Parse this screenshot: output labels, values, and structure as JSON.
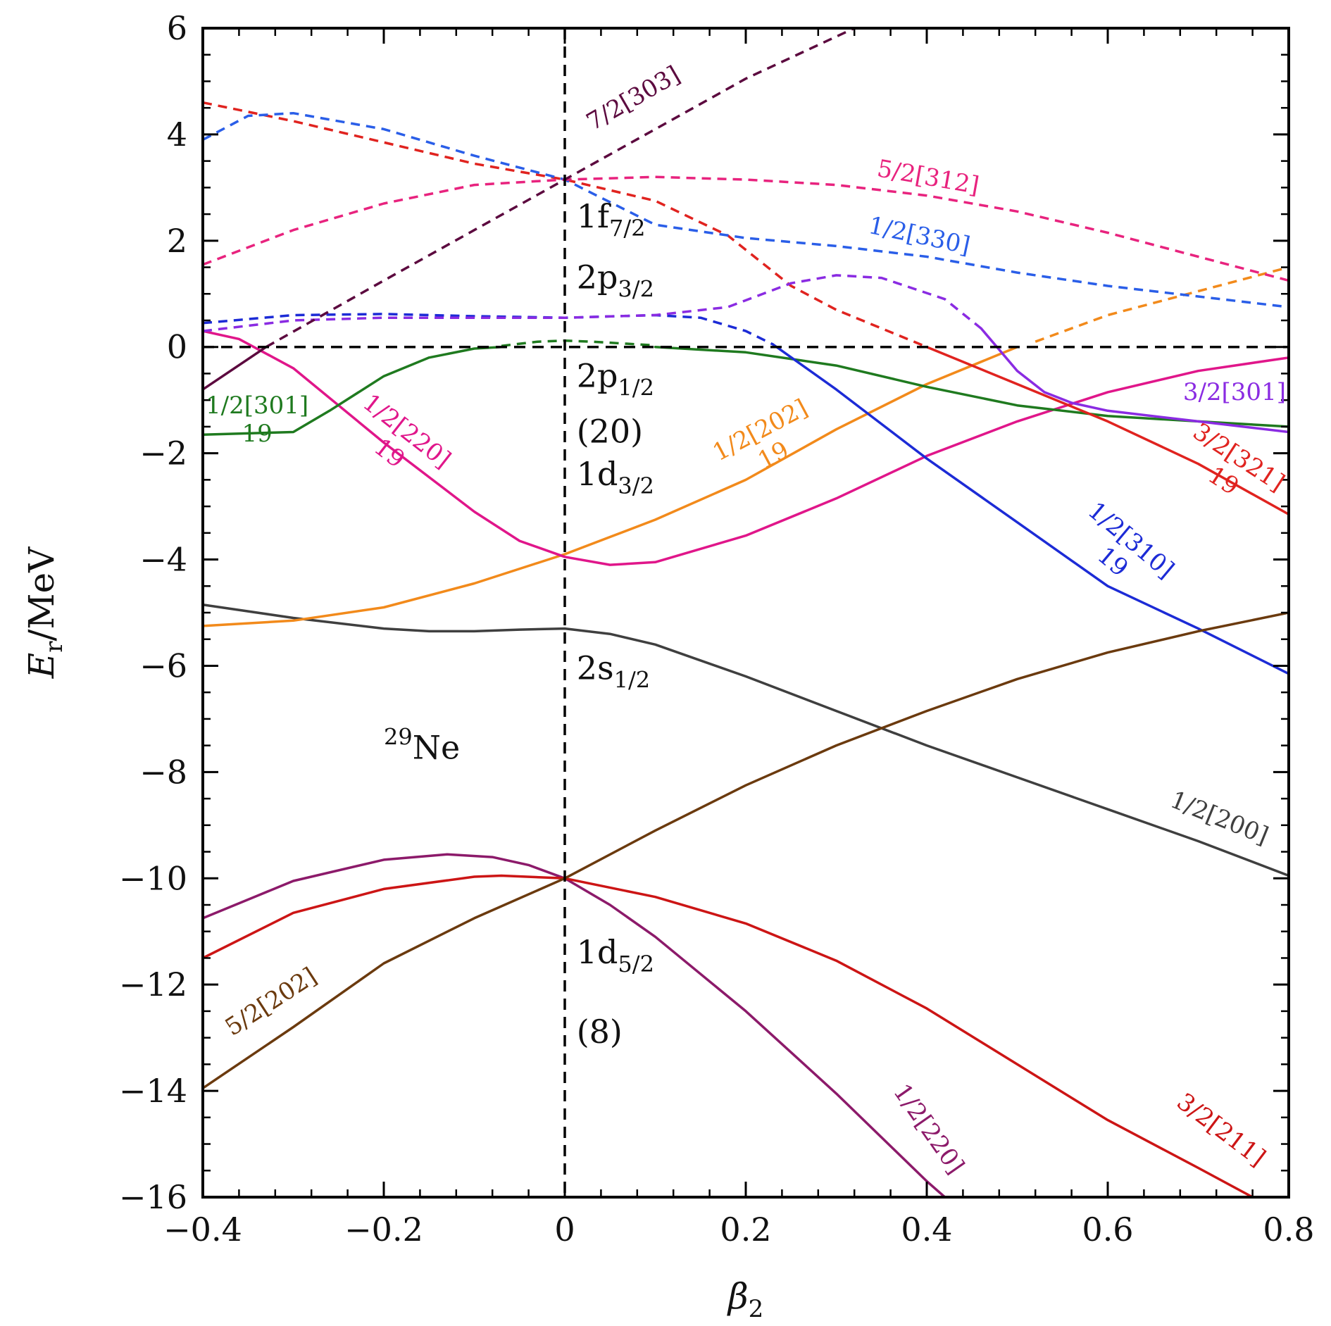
{
  "chart_data": {
    "type": "line",
    "xlabel": "β2",
    "ylabel": "Er/MeV",
    "xlim": [
      -0.4,
      0.8
    ],
    "ylim": [
      -16,
      6
    ],
    "x_ticks": [
      "−0.4",
      "−0.2",
      "0",
      "0.2",
      "0.4",
      "0.6",
      "0.8"
    ],
    "y_ticks": [
      "−16",
      "−14",
      "−12",
      "−10",
      "−8",
      "−6",
      "−4",
      "−2",
      "0",
      "2",
      "4",
      "6"
    ],
    "reference_lines": [
      {
        "orientation": "vertical",
        "x": 0,
        "style": "dashed",
        "color": "#000000"
      },
      {
        "orientation": "horizontal",
        "y": 0,
        "style": "dashed",
        "color": "#000000"
      }
    ],
    "nucleus_label": {
      "mass": "29",
      "element": "Ne",
      "x": -0.2,
      "y": -7.75
    },
    "shell_labels": [
      {
        "main": "1f",
        "sub": "7/2",
        "x": 0.013,
        "y": 2.25
      },
      {
        "main": "2p",
        "sub": "3/2",
        "x": 0.013,
        "y": 1.1
      },
      {
        "main": "2p",
        "sub": "1/2",
        "x": 0.013,
        "y": -0.75
      },
      {
        "main": "(20)",
        "sub": "",
        "x": 0.013,
        "y": -1.8
      },
      {
        "main": "1d",
        "sub": "3/2",
        "x": 0.013,
        "y": -2.6
      },
      {
        "main": "2s",
        "sub": "1/2",
        "x": 0.013,
        "y": -6.25
      },
      {
        "main": "1d",
        "sub": "5/2",
        "x": 0.013,
        "y": -11.6
      },
      {
        "main": "(8)",
        "sub": "",
        "x": 0.013,
        "y": -13.1
      }
    ],
    "series": [
      {
        "name": "1/2[200]",
        "color": "#3f3f3f",
        "style": "solid",
        "x": [
          -0.4,
          -0.3,
          -0.2,
          -0.15,
          -0.1,
          -0.05,
          0,
          0.05,
          0.1,
          0.2,
          0.3,
          0.4,
          0.5,
          0.6,
          0.7,
          0.8
        ],
        "y": [
          -4.85,
          -5.1,
          -5.3,
          -5.35,
          -5.35,
          -5.32,
          -5.3,
          -5.4,
          -5.6,
          -6.2,
          -6.85,
          -7.5,
          -8.1,
          -8.7,
          -9.3,
          -9.95
        ],
        "label": {
          "text": "1/2[200]",
          "x": 0.72,
          "y": -9.0,
          "angle": 22
        }
      },
      {
        "name": "1/2[202]",
        "color": "#f28a1b",
        "style": "solid",
        "x": [
          -0.4,
          -0.3,
          -0.2,
          -0.1,
          0,
          0.1,
          0.2,
          0.3,
          0.4,
          0.5
        ],
        "y": [
          -5.25,
          -5.15,
          -4.9,
          -4.45,
          -3.9,
          -3.25,
          -2.5,
          -1.55,
          -0.7,
          0.0
        ],
        "label": {
          "text": "1/2[202]",
          "x": 0.22,
          "y": -1.7,
          "angle": -28,
          "sub": "19"
        }
      },
      {
        "name": "1/2[202] cont.",
        "color": "#f28a1b",
        "style": "dashed",
        "x": [
          0.52,
          0.6,
          0.7,
          0.8
        ],
        "y": [
          0.1,
          0.6,
          1.05,
          1.5
        ]
      },
      {
        "name": "1/2[220] upper",
        "color": "#e0168a",
        "style": "solid",
        "x": [
          -0.4,
          -0.36,
          -0.3,
          -0.2,
          -0.1,
          -0.05,
          0,
          0.05,
          0.1,
          0.2,
          0.3,
          0.4,
          0.5,
          0.6,
          0.7,
          0.8
        ],
        "y": [
          0.3,
          0.15,
          -0.4,
          -1.8,
          -3.1,
          -3.65,
          -3.95,
          -4.1,
          -4.05,
          -3.55,
          -2.85,
          -2.05,
          -1.4,
          -0.85,
          -0.45,
          -0.2
        ],
        "label": {
          "text": "1/2[220]",
          "x": -0.18,
          "y": -1.7,
          "angle": 38,
          "sub": "19"
        }
      },
      {
        "name": "1/2[301]",
        "color": "#1f7a1f",
        "style": "solid",
        "x": [
          -0.4,
          -0.3,
          -0.26,
          -0.2,
          -0.15,
          -0.1,
          -0.07
        ],
        "y": [
          -1.65,
          -1.6,
          -1.2,
          -0.55,
          -0.2,
          -0.03,
          0.0
        ],
        "label": {
          "text": "1/2[301]",
          "x": -0.34,
          "y": -1.25,
          "angle": 0,
          "sub": "19"
        }
      },
      {
        "name": "1/2[301] dashed",
        "color": "#1f7a1f",
        "style": "dashed",
        "x": [
          -0.07,
          -0.03,
          0,
          0.03,
          0.1
        ],
        "y": [
          0.02,
          0.1,
          0.12,
          0.1,
          0.03
        ]
      },
      {
        "name": "1/2[301] cont.",
        "color": "#1f7a1f",
        "style": "solid",
        "x": [
          0.1,
          0.2,
          0.3,
          0.4,
          0.5,
          0.6,
          0.7,
          0.8
        ],
        "y": [
          0.0,
          -0.1,
          -0.35,
          -0.75,
          -1.1,
          -1.3,
          -1.4,
          -1.5
        ]
      },
      {
        "name": "1/2[310]",
        "color": "#1c2bd6",
        "style": "solid",
        "x": [
          0.23,
          0.3,
          0.4,
          0.5,
          0.6,
          0.7,
          0.8
        ],
        "y": [
          0.05,
          -0.8,
          -2.1,
          -3.3,
          -4.5,
          -5.3,
          -6.15
        ],
        "label": {
          "text": "1/2[310]",
          "x": 0.62,
          "y": -3.75,
          "angle": 40,
          "sub": "19"
        }
      },
      {
        "name": "1/2[310] dashed",
        "color": "#1c2bd6",
        "style": "dashed",
        "x": [
          -0.4,
          -0.3,
          -0.2,
          -0.1,
          0,
          0.1,
          0.15,
          0.2,
          0.23
        ],
        "y": [
          0.45,
          0.6,
          0.62,
          0.58,
          0.55,
          0.6,
          0.55,
          0.3,
          0.05
        ]
      },
      {
        "name": "3/2[321]",
        "color": "#e0231f",
        "style": "solid",
        "x": [
          0.4,
          0.5,
          0.6,
          0.7,
          0.8
        ],
        "y": [
          0.0,
          -0.7,
          -1.4,
          -2.2,
          -3.15
        ],
        "label": {
          "text": "3/2[321]",
          "x": 0.74,
          "y": -2.2,
          "angle": 33,
          "sub": "19"
        }
      },
      {
        "name": "3/2[321] dashed",
        "color": "#e0231f",
        "style": "dashed",
        "x": [
          -0.4,
          -0.3,
          -0.2,
          -0.1,
          0,
          0.1,
          0.18,
          0.25,
          0.3,
          0.4
        ],
        "y": [
          4.6,
          4.25,
          3.85,
          3.45,
          3.15,
          2.75,
          2.1,
          1.15,
          0.7,
          0.0
        ]
      },
      {
        "name": "3/2[301]",
        "color": "#8a2be2",
        "style": "solid",
        "x": [
          0.46,
          0.5,
          0.53,
          0.56,
          0.6,
          0.7,
          0.8
        ],
        "y": [
          0.35,
          -0.45,
          -0.85,
          -1.05,
          -1.2,
          -1.4,
          -1.6
        ],
        "label": {
          "text": "3/2[301]",
          "x": 0.74,
          "y": -1.0,
          "angle": 0
        }
      },
      {
        "name": "3/2[301] dashed",
        "color": "#8a2be2",
        "style": "dashed",
        "x": [
          -0.4,
          -0.3,
          -0.2,
          -0.1,
          0,
          0.1,
          0.18,
          0.25,
          0.3,
          0.35,
          0.42,
          0.46
        ],
        "y": [
          0.3,
          0.5,
          0.55,
          0.55,
          0.55,
          0.6,
          0.75,
          1.2,
          1.35,
          1.3,
          0.9,
          0.35
        ]
      },
      {
        "name": "1/2[330]",
        "color": "#2a5ee8",
        "style": "dashed",
        "x": [
          -0.4,
          -0.35,
          -0.3,
          -0.2,
          -0.1,
          0,
          0.1,
          0.2,
          0.3,
          0.4,
          0.5,
          0.6,
          0.7,
          0.8
        ],
        "y": [
          3.9,
          4.35,
          4.4,
          4.1,
          3.6,
          3.15,
          2.3,
          2.05,
          1.9,
          1.7,
          1.4,
          1.15,
          0.95,
          0.75
        ],
        "label": {
          "text": "1/2[330]",
          "x": 0.39,
          "y": 1.95,
          "angle": 12
        }
      },
      {
        "name": "5/2[312]",
        "color": "#e8237e",
        "style": "dashed",
        "x": [
          -0.4,
          -0.3,
          -0.2,
          -0.1,
          0,
          0.1,
          0.2,
          0.3,
          0.4,
          0.5,
          0.6,
          0.7,
          0.8
        ],
        "y": [
          1.55,
          2.2,
          2.7,
          3.05,
          3.15,
          3.2,
          3.15,
          3.05,
          2.85,
          2.55,
          2.15,
          1.7,
          1.25
        ],
        "label": {
          "text": "5/2[312]",
          "x": 0.4,
          "y": 3.05,
          "angle": 10
        }
      },
      {
        "name": "7/2[303]",
        "color": "#5c0a3f",
        "style": "dashed",
        "x": [
          -0.33,
          -0.2,
          -0.1,
          0,
          0.1,
          0.2,
          0.32
        ],
        "y": [
          0.0,
          1.25,
          2.2,
          3.15,
          4.1,
          5.05,
          6.0
        ],
        "label": {
          "text": "7/2[303]",
          "x": 0.08,
          "y": 4.55,
          "angle": -30
        }
      },
      {
        "name": "7/2[303] solid",
        "color": "#5c0a3f",
        "style": "solid",
        "x": [
          -0.4,
          -0.33
        ],
        "y": [
          -0.8,
          0.0
        ]
      },
      {
        "name": "1/2[220]",
        "color": "#8c1a6a",
        "style": "solid",
        "x": [
          -0.4,
          -0.3,
          -0.2,
          -0.13,
          -0.08,
          -0.04,
          0,
          0.05,
          0.1,
          0.2,
          0.3,
          0.4,
          0.42
        ],
        "y": [
          -10.75,
          -10.05,
          -9.65,
          -9.55,
          -9.6,
          -9.75,
          -10.0,
          -10.5,
          -11.1,
          -12.5,
          -14.05,
          -15.7,
          -16.0
        ],
        "label": {
          "text": "1/2[220]",
          "x": 0.395,
          "y": -14.8,
          "angle": 55
        }
      },
      {
        "name": "3/2[211]",
        "color": "#cc1515",
        "style": "solid",
        "x": [
          -0.4,
          -0.3,
          -0.2,
          -0.1,
          -0.07,
          0,
          0.1,
          0.2,
          0.3,
          0.4,
          0.5,
          0.6,
          0.7,
          0.76
        ],
        "y": [
          -11.5,
          -10.65,
          -10.2,
          -9.97,
          -9.95,
          -10.0,
          -10.35,
          -10.85,
          -11.55,
          -12.45,
          -13.5,
          -14.55,
          -15.45,
          -16.0
        ],
        "label": {
          "text": "3/2[211]",
          "x": 0.72,
          "y": -14.85,
          "angle": 37
        }
      },
      {
        "name": "5/2[202]",
        "color": "#6b3a0e",
        "style": "solid",
        "x": [
          -0.4,
          -0.3,
          -0.2,
          -0.1,
          0,
          0.1,
          0.2,
          0.3,
          0.4,
          0.5,
          0.6,
          0.7,
          0.8
        ],
        "y": [
          -13.95,
          -12.8,
          -11.6,
          -10.75,
          -10.0,
          -9.1,
          -8.25,
          -7.5,
          -6.85,
          -6.25,
          -5.75,
          -5.35,
          -5.0
        ],
        "label": {
          "text": "5/2[202]",
          "x": -0.32,
          "y": -12.45,
          "angle": -33
        }
      }
    ]
  }
}
